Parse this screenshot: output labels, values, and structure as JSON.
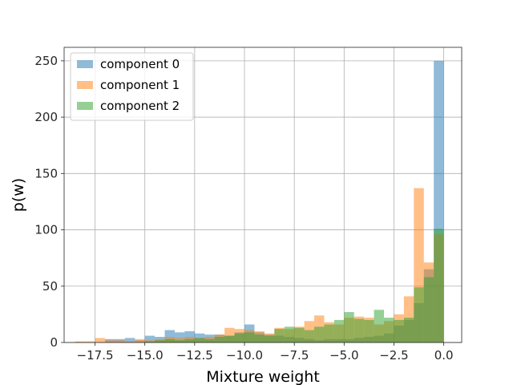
{
  "chart_data": {
    "type": "histogram",
    "xlabel": "Mixture weight",
    "ylabel": "p(w)",
    "xlim": [
      -19.05,
      0.9
    ],
    "ylim": [
      0,
      262
    ],
    "grid": true,
    "legend_position": "top-left",
    "bin_width": 0.5,
    "x_ticks": [
      -17.5,
      -15.0,
      -12.5,
      -10.0,
      -7.5,
      -5.0,
      -2.5,
      0.0
    ],
    "x_tick_labels": [
      "−17.5",
      "−15.0",
      "−12.5",
      "−10.0",
      "−7.5",
      "−5.0",
      "−2.5",
      "0.0"
    ],
    "y_ticks": [
      0,
      50,
      100,
      150,
      200,
      250
    ],
    "y_tick_labels": [
      "0",
      "50",
      "100",
      "150",
      "200",
      "250"
    ],
    "series": [
      {
        "name": "component 0",
        "color": "#1f77b4",
        "bins": [
          [
            -17.0,
            3
          ],
          [
            -16.5,
            3
          ],
          [
            -16.0,
            4
          ],
          [
            -15.5,
            2
          ],
          [
            -15.0,
            6
          ],
          [
            -14.5,
            5
          ],
          [
            -14.0,
            11
          ],
          [
            -13.5,
            9
          ],
          [
            -13.0,
            10
          ],
          [
            -12.5,
            8
          ],
          [
            -12.0,
            7
          ],
          [
            -11.5,
            7
          ],
          [
            -11.0,
            6
          ],
          [
            -10.5,
            9
          ],
          [
            -10.0,
            16
          ],
          [
            -9.5,
            9
          ],
          [
            -9.0,
            7
          ],
          [
            -8.5,
            6
          ],
          [
            -8.0,
            5
          ],
          [
            -7.5,
            4
          ],
          [
            -7.0,
            3
          ],
          [
            -6.5,
            2
          ],
          [
            -6.0,
            3
          ],
          [
            -5.5,
            3
          ],
          [
            -5.0,
            3
          ],
          [
            -4.5,
            4
          ],
          [
            -4.0,
            5
          ],
          [
            -3.5,
            6
          ],
          [
            -3.0,
            8
          ],
          [
            -2.5,
            15
          ],
          [
            -2.0,
            20
          ],
          [
            -1.5,
            35
          ],
          [
            -1.0,
            65
          ],
          [
            -0.5,
            250
          ]
        ]
      },
      {
        "name": "component 1",
        "color": "#ff7f0e",
        "bins": [
          [
            -18.5,
            1
          ],
          [
            -18.0,
            1
          ],
          [
            -17.5,
            4
          ],
          [
            -17.0,
            2
          ],
          [
            -16.5,
            2
          ],
          [
            -16.0,
            1
          ],
          [
            -15.5,
            3
          ],
          [
            -15.0,
            2
          ],
          [
            -14.5,
            3
          ],
          [
            -14.0,
            5
          ],
          [
            -13.5,
            4
          ],
          [
            -13.0,
            5
          ],
          [
            -12.5,
            4
          ],
          [
            -12.0,
            5
          ],
          [
            -11.5,
            7
          ],
          [
            -11.0,
            13
          ],
          [
            -10.5,
            12
          ],
          [
            -10.0,
            11
          ],
          [
            -9.5,
            10
          ],
          [
            -9.0,
            8
          ],
          [
            -8.5,
            13
          ],
          [
            -8.0,
            12
          ],
          [
            -7.5,
            14
          ],
          [
            -7.0,
            19
          ],
          [
            -6.5,
            24
          ],
          [
            -6.0,
            18
          ],
          [
            -5.5,
            16
          ],
          [
            -5.0,
            22
          ],
          [
            -4.5,
            23
          ],
          [
            -4.0,
            22
          ],
          [
            -3.5,
            16
          ],
          [
            -3.0,
            19
          ],
          [
            -2.5,
            25
          ],
          [
            -2.0,
            41
          ],
          [
            -1.5,
            137
          ],
          [
            -1.0,
            71
          ],
          [
            -0.5,
            96
          ]
        ]
      },
      {
        "name": "component 2",
        "color": "#2ca02c",
        "bins": [
          [
            -15.0,
            1
          ],
          [
            -14.5,
            2
          ],
          [
            -14.0,
            3
          ],
          [
            -13.5,
            2
          ],
          [
            -13.0,
            3
          ],
          [
            -12.5,
            4
          ],
          [
            -12.0,
            3
          ],
          [
            -11.5,
            5
          ],
          [
            -11.0,
            6
          ],
          [
            -10.5,
            8
          ],
          [
            -10.0,
            9
          ],
          [
            -9.5,
            7
          ],
          [
            -9.0,
            6
          ],
          [
            -8.5,
            12
          ],
          [
            -8.0,
            14
          ],
          [
            -7.5,
            13
          ],
          [
            -7.0,
            11
          ],
          [
            -6.5,
            14
          ],
          [
            -6.0,
            16
          ],
          [
            -5.5,
            20
          ],
          [
            -5.0,
            27
          ],
          [
            -4.5,
            21
          ],
          [
            -4.0,
            20
          ],
          [
            -3.5,
            29
          ],
          [
            -3.0,
            22
          ],
          [
            -2.5,
            20
          ],
          [
            -2.0,
            22
          ],
          [
            -1.5,
            49
          ],
          [
            -1.0,
            58
          ],
          [
            -0.5,
            101
          ]
        ]
      }
    ]
  },
  "legend": {
    "items": [
      {
        "label": "component 0",
        "color": "#1f77b4"
      },
      {
        "label": "component 1",
        "color": "#ff7f0e"
      },
      {
        "label": "component 2",
        "color": "#2ca02c"
      }
    ]
  }
}
